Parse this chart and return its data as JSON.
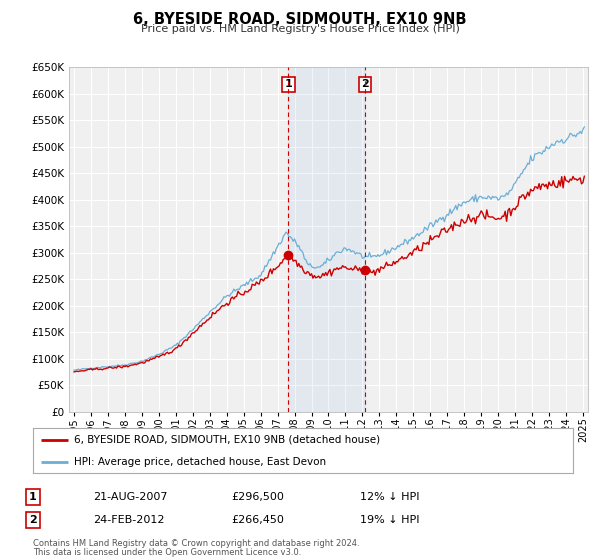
{
  "title": "6, BYESIDE ROAD, SIDMOUTH, EX10 9NB",
  "subtitle": "Price paid vs. HM Land Registry's House Price Index (HPI)",
  "ylim": [
    0,
    650000
  ],
  "yticks": [
    0,
    50000,
    100000,
    150000,
    200000,
    250000,
    300000,
    350000,
    400000,
    450000,
    500000,
    550000,
    600000,
    650000
  ],
  "xlim_start": 1994.7,
  "xlim_end": 2025.3,
  "sale1_date": 2007.64,
  "sale1_price": 296500,
  "sale1_label": "1",
  "sale2_date": 2012.15,
  "sale2_price": 266450,
  "sale2_label": "2",
  "hpi_color": "#6baed6",
  "price_color": "#cc0000",
  "background_color": "#ffffff",
  "plot_bg_color": "#f0f0f0",
  "grid_color": "#ffffff",
  "legend_label_price": "6, BYESIDE ROAD, SIDMOUTH, EX10 9NB (detached house)",
  "legend_label_hpi": "HPI: Average price, detached house, East Devon",
  "annotation1_date": "21-AUG-2007",
  "annotation1_price": "£296,500",
  "annotation1_pct": "12% ↓ HPI",
  "annotation2_date": "24-FEB-2012",
  "annotation2_price": "£266,450",
  "annotation2_pct": "19% ↓ HPI",
  "footnote1": "Contains HM Land Registry data © Crown copyright and database right 2024.",
  "footnote2": "This data is licensed under the Open Government Licence v3.0."
}
